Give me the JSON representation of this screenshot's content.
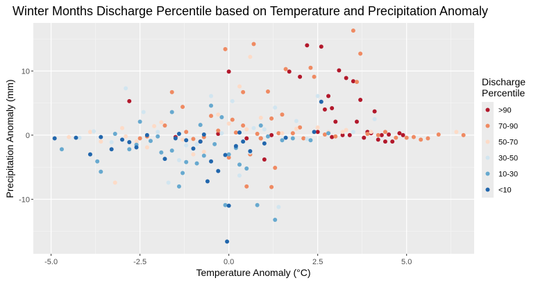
{
  "chart_data": {
    "type": "scatter",
    "title": "Winter Months Discharge Percentile based on Temperature and Precipitation Anomaly",
    "xlabel": "Temperature Anomaly (°C)",
    "ylabel": "Precipitation Anomaly (mm)",
    "xlim": [
      -5.5,
      6.9
    ],
    "ylim": [
      -18.5,
      17.5
    ],
    "x_ticks": [
      -5.0,
      -2.5,
      0.0,
      2.5,
      5.0
    ],
    "x_tick_labels": [
      "-5.0",
      "-2.5",
      "0.0",
      "2.5",
      "5.0"
    ],
    "y_ticks": [
      -10,
      0,
      10
    ],
    "y_tick_labels": [
      "-10",
      "0",
      "10"
    ],
    "grid": true,
    "legend": {
      "title": "Discharge\nPercentile",
      "title_lines": [
        "Discharge",
        "Percentile"
      ],
      "placement": "right"
    },
    "series": [
      {
        "name": ">90",
        "color": "#b2182b",
        "x": [
          -2.8,
          0.0,
          1.7,
          2.2,
          2.6,
          2.0,
          3.1,
          3.3,
          2.8,
          3.5,
          3.7,
          4.1,
          2.9,
          3.6,
          3.0,
          4.0,
          4.3,
          4.6,
          4.8,
          4.5,
          3.8,
          3.4,
          2.5,
          1.2,
          0.5,
          -0.3,
          -1.5,
          3.9,
          4.2,
          4.9,
          2.7,
          3.2,
          0.9,
          -0.8,
          1.0,
          2.9,
          4.4
        ],
        "y": [
          5.3,
          9.9,
          9.9,
          14.0,
          13.8,
          9.1,
          10.1,
          8.9,
          6.1,
          8.4,
          5.5,
          3.7,
          4.2,
          2.1,
          2.1,
          0.3,
          0.0,
          -1.0,
          0.3,
          0.1,
          -0.4,
          0.0,
          0.5,
          0.0,
          -0.5,
          0.2,
          -0.3,
          0.5,
          -0.7,
          0.0,
          4.0,
          0.0,
          -0.5,
          -1.0,
          -3.8,
          -0.3,
          -1.0
        ]
      },
      {
        "name": "70-90",
        "color": "#ef8a62",
        "x": [
          -0.1,
          0.7,
          1.6,
          2.3,
          3.5,
          3.7,
          1.1,
          0.4,
          -1.6,
          1.5,
          3.6,
          2.4,
          1.2,
          0.1,
          -0.5,
          -1.8,
          -2.3,
          -1.2,
          0.9,
          2.0,
          4.4,
          5.2,
          5.9,
          6.6,
          4.7,
          5.4,
          3.0,
          1.4,
          0.2,
          -0.7,
          -2.5,
          0.6,
          1.3,
          0.5,
          3.9,
          4.2,
          1.8,
          -1.0,
          -0.3,
          0.8,
          2.1,
          2.7,
          5.0,
          5.6,
          -1.3,
          0.0,
          1.2,
          0.4
        ],
        "y": [
          13.4,
          14.2,
          10.3,
          10.5,
          16.3,
          12.7,
          6.8,
          6.7,
          6.7,
          3.2,
          8.3,
          9.1,
          2.6,
          2.4,
          3.0,
          1.5,
          -0.2,
          0.5,
          -0.5,
          1.2,
          0.5,
          -0.3,
          0.1,
          0.0,
          -0.4,
          -0.7,
          -0.2,
          0.3,
          0.4,
          -0.3,
          -0.5,
          -3.0,
          -5.1,
          -8.0,
          0.2,
          0.0,
          0.3,
          -0.6,
          0.7,
          0.2,
          -0.5,
          0.1,
          -0.4,
          -0.5,
          4.4,
          -3.5,
          -8.1,
          1.5
        ]
      },
      {
        "name": "50-70",
        "color": "#fddbc7",
        "x": [
          0.6,
          0.3,
          -1.9,
          -1.5,
          -2.1,
          -2.6,
          -3.2,
          -4.5,
          -3.9,
          -0.3,
          0.9,
          1.9,
          2.8,
          3.2,
          4.0,
          6.4,
          -1.0,
          0.0,
          -2.9,
          -3.6,
          -1.3,
          0.5,
          1.5,
          2.5,
          3.3,
          -0.7,
          -2.3,
          -3.0
        ],
        "y": [
          12.2,
          7.6,
          2.0,
          -0.5,
          1.4,
          -1.0,
          -7.4,
          -0.3,
          0.5,
          3.2,
          2.7,
          1.0,
          0.5,
          0.5,
          0.5,
          0.5,
          -3.0,
          1.8,
          -0.2,
          -1.0,
          -0.7,
          0.9,
          0.3,
          1.2,
          0.8,
          -2.6,
          -1.9,
          1.1
        ]
      },
      {
        "name": "30-50",
        "color": "#d1e5f0",
        "x": [
          -2.9,
          -0.5,
          0.1,
          1.3,
          1.9,
          -1.7,
          -2.4,
          -1.2,
          0.7,
          2.5,
          4.1,
          -3.8,
          -4.2,
          0.3,
          -0.9,
          1.0,
          3.5,
          2.2,
          -2.0,
          -1.4,
          1.4,
          -0.2,
          0.6,
          -3.3
        ],
        "y": [
          7.3,
          6.1,
          5.3,
          4.3,
          2.2,
          -7.4,
          3.6,
          -1.6,
          1.1,
          6.1,
          2.5,
          0.6,
          -0.4,
          -6.3,
          -1.4,
          0.9,
          0.5,
          -0.6,
          0.5,
          -3.9,
          -11.2,
          0.3,
          -2.7,
          -1.1
        ]
      },
      {
        "name": "10-30",
        "color": "#67a9cf",
        "x": [
          -0.5,
          -1.6,
          -0.2,
          0.9,
          1.1,
          -0.7,
          0.0,
          0.5,
          1.3,
          -4.7,
          -3.7,
          -3.6,
          -2.8,
          -2.0,
          -1.6,
          -1.2,
          -0.9,
          0.3,
          1.5,
          2.3,
          -1.4,
          -2.5,
          0.8,
          1.8,
          -0.1,
          -3.2,
          -0.4,
          0.2,
          -1.9,
          -2.2,
          -1.3,
          -0.8,
          -2.6,
          2.8
        ],
        "y": [
          4.6,
          3.6,
          2.8,
          1.5,
          -0.2,
          -3.2,
          -3.0,
          -5.2,
          -13.2,
          -2.2,
          -4.1,
          -5.7,
          -2.2,
          -0.2,
          -2.4,
          -4.2,
          -4.4,
          -4.6,
          -0.8,
          -0.8,
          -8.0,
          2.1,
          -10.9,
          -0.5,
          -10.9,
          0.2,
          -1.4,
          -2.0,
          -2.7,
          -0.9,
          -5.9,
          1.6,
          -1.5,
          0.3
        ]
      },
      {
        "name": "<10",
        "color": "#2166ac",
        "x": [
          -4.9,
          -3.9,
          -3.3,
          -2.6,
          -1.8,
          -1.2,
          -0.8,
          -0.5,
          -0.1,
          0.2,
          0.6,
          1.0,
          1.6,
          2.6,
          -1.0,
          -0.6,
          0.0,
          -0.3,
          0.4,
          -1.5,
          -2.3,
          -3.0,
          -4.3,
          -3.6,
          -2.8,
          -1.4,
          -0.7,
          0.3,
          2.4,
          -0.05
        ],
        "y": [
          -0.5,
          -3.0,
          -2.2,
          -1.9,
          -3.7,
          -0.8,
          -1.0,
          -4.1,
          -3.1,
          -1.7,
          -2.5,
          -1.3,
          -0.4,
          5.2,
          -2.1,
          -7.2,
          -11.0,
          -5.6,
          -1.0,
          -0.5,
          0.0,
          -0.7,
          -0.4,
          -0.3,
          -1.1,
          0.2,
          0.1,
          0.4,
          0.5,
          -16.6
        ]
      }
    ]
  }
}
